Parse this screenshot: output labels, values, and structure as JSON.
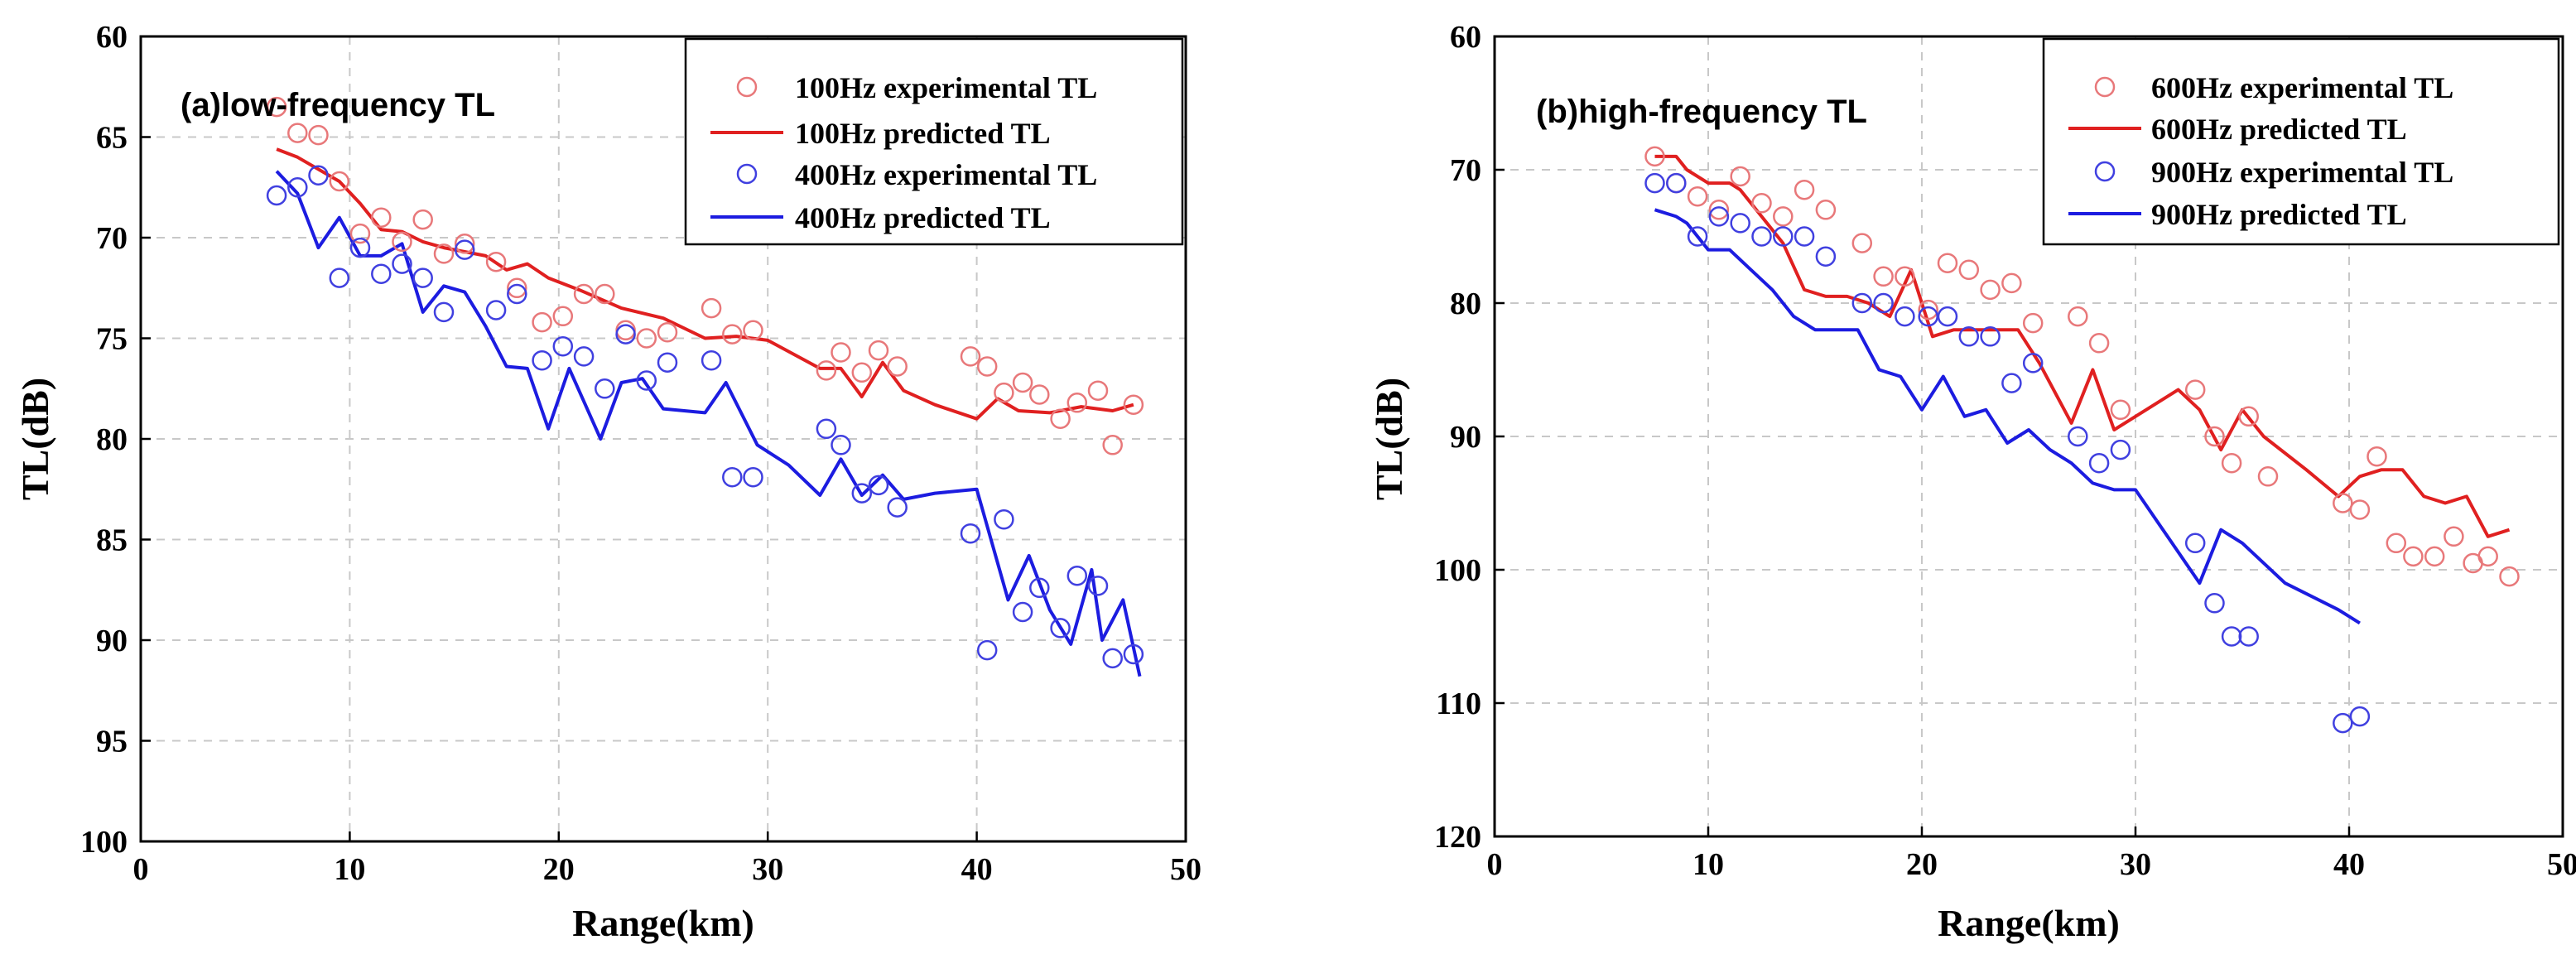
{
  "chart_data": [
    {
      "type": "line",
      "title": "(a)low-frequency TL",
      "xlabel": "Range(km)",
      "ylabel": "TL(dB)",
      "xlim": [
        0,
        50
      ],
      "ylim": [
        60,
        100
      ],
      "y_reversed": true,
      "grid": true,
      "legend_position": "top-right",
      "xticks": [
        0,
        10,
        20,
        30,
        40,
        50
      ],
      "yticks": [
        60,
        65,
        70,
        75,
        80,
        85,
        90,
        95,
        100
      ],
      "series": [
        {
          "name": "100Hz experimental TL",
          "kind": "scatter",
          "color": "#e8787a",
          "x": [
            6.5,
            7.5,
            8.5,
            9.5,
            10.5,
            11.5,
            12.5,
            13.5,
            14.5,
            15.5,
            17.0,
            18.0,
            19.2,
            20.2,
            21.2,
            22.2,
            23.2,
            24.2,
            25.2,
            27.3,
            28.3,
            29.3,
            32.8,
            33.5,
            34.5,
            35.3,
            36.2,
            39.7,
            40.5,
            41.3,
            42.2,
            43.0,
            44.0,
            44.8,
            45.8,
            46.5,
            47.5
          ],
          "y": [
            63.5,
            64.8,
            64.9,
            67.2,
            69.8,
            69.0,
            70.2,
            69.1,
            70.8,
            70.3,
            71.2,
            72.5,
            74.2,
            73.9,
            72.8,
            72.8,
            74.6,
            75.0,
            74.7,
            73.5,
            74.8,
            74.6,
            76.6,
            75.7,
            76.7,
            75.6,
            76.4,
            75.9,
            76.4,
            77.7,
            77.2,
            77.8,
            79.0,
            78.2,
            77.6,
            80.3,
            78.3
          ]
        },
        {
          "name": "100Hz predicted TL",
          "kind": "line",
          "color": "#e02020",
          "x": [
            6.5,
            7.5,
            8.5,
            9.5,
            10.5,
            11.5,
            12.5,
            13.5,
            14.5,
            15.5,
            16.5,
            17.5,
            18.5,
            19.5,
            21.0,
            23.0,
            25.0,
            27.0,
            28.5,
            30.0,
            32.5,
            33.5,
            34.5,
            35.5,
            36.5,
            38.0,
            40.0,
            41.0,
            42.0,
            43.5,
            45.0,
            46.5,
            47.5
          ],
          "y": [
            65.6,
            66.0,
            66.6,
            67.2,
            68.3,
            69.6,
            69.7,
            70.2,
            70.5,
            70.7,
            70.9,
            71.6,
            71.3,
            72.0,
            72.6,
            73.5,
            74.0,
            75.0,
            74.9,
            75.1,
            76.5,
            76.5,
            77.9,
            76.2,
            77.6,
            78.3,
            79.0,
            78.0,
            78.6,
            78.7,
            78.4,
            78.6,
            78.3
          ]
        },
        {
          "name": "400Hz experimental TL",
          "kind": "scatter",
          "color": "#4040e0",
          "x": [
            6.5,
            7.5,
            8.5,
            9.5,
            10.5,
            11.5,
            12.5,
            13.5,
            14.5,
            15.5,
            17.0,
            18.0,
            19.2,
            20.2,
            21.2,
            22.2,
            23.2,
            24.2,
            25.2,
            27.3,
            28.3,
            29.3,
            32.8,
            33.5,
            34.5,
            35.3,
            36.2,
            39.7,
            40.5,
            41.3,
            42.2,
            43.0,
            44.0,
            44.8,
            45.8,
            46.5,
            47.5
          ],
          "y": [
            67.9,
            67.5,
            66.9,
            72.0,
            70.5,
            71.8,
            71.3,
            72.0,
            73.7,
            70.6,
            73.6,
            72.8,
            76.1,
            75.4,
            75.9,
            77.5,
            74.8,
            77.1,
            76.2,
            76.1,
            81.9,
            81.9,
            79.5,
            80.3,
            82.7,
            82.3,
            83.4,
            84.7,
            90.5,
            84.0,
            88.6,
            87.4,
            89.4,
            86.8,
            87.3,
            90.9,
            90.7
          ]
        },
        {
          "name": "400Hz predicted TL",
          "kind": "line",
          "color": "#1c1ce0",
          "x": [
            6.5,
            7.5,
            8.5,
            9.5,
            10.5,
            11.5,
            12.5,
            13.5,
            14.5,
            15.5,
            16.5,
            17.5,
            18.5,
            19.5,
            20.5,
            22.0,
            23.0,
            24.0,
            25.0,
            27.0,
            28.0,
            29.5,
            31.0,
            32.5,
            33.5,
            34.5,
            35.5,
            36.5,
            38.0,
            40.0,
            41.5,
            42.5,
            43.5,
            44.5,
            45.5,
            46.0,
            47.0,
            47.8
          ],
          "y": [
            66.7,
            67.8,
            70.5,
            69.0,
            70.9,
            70.9,
            70.3,
            73.7,
            72.4,
            72.7,
            74.4,
            76.4,
            76.5,
            79.5,
            76.5,
            80.0,
            77.2,
            77.0,
            78.5,
            78.7,
            77.2,
            80.3,
            81.3,
            82.8,
            81.0,
            82.8,
            81.8,
            83.0,
            82.7,
            82.5,
            88.0,
            85.8,
            88.5,
            90.2,
            86.5,
            90.0,
            88.0,
            91.8
          ]
        }
      ]
    },
    {
      "type": "line",
      "title": "(b)high-frequency TL",
      "xlabel": "Range(km)",
      "ylabel": "TL(dB)",
      "xlim": [
        0,
        50
      ],
      "ylim": [
        60,
        120
      ],
      "y_reversed": true,
      "grid": true,
      "legend_position": "top-right",
      "xticks": [
        0,
        10,
        20,
        30,
        40,
        50
      ],
      "yticks": [
        60,
        70,
        80,
        90,
        100,
        110,
        120
      ],
      "series": [
        {
          "name": "600Hz experimental TL",
          "kind": "scatter",
          "color": "#e8787a",
          "x": [
            7.5,
            8.5,
            9.5,
            10.5,
            11.5,
            12.5,
            13.5,
            14.5,
            15.5,
            17.2,
            18.2,
            19.2,
            20.3,
            21.2,
            22.2,
            23.2,
            24.2,
            25.2,
            27.3,
            28.3,
            29.3,
            32.8,
            33.7,
            34.5,
            35.3,
            36.2,
            39.7,
            40.5,
            41.3,
            42.2,
            43.0,
            44.0,
            44.9,
            45.8,
            46.5,
            47.5
          ],
          "y": [
            69.0,
            71.0,
            72.0,
            73.0,
            70.5,
            72.5,
            73.5,
            71.5,
            73.0,
            75.5,
            78.0,
            78.0,
            80.5,
            77.0,
            77.5,
            79.0,
            78.5,
            81.5,
            81.0,
            83.0,
            88.0,
            86.5,
            90.0,
            92.0,
            88.5,
            93.0,
            95.0,
            95.5,
            91.5,
            98.0,
            99.0,
            99.0,
            97.5,
            99.5,
            99.0,
            100.5
          ]
        },
        {
          "name": "600Hz predicted TL",
          "kind": "line",
          "color": "#e02020",
          "x": [
            7.5,
            8.5,
            9.0,
            10.0,
            11.0,
            11.5,
            12.5,
            13.5,
            14.5,
            15.5,
            16.5,
            17.5,
            18.5,
            19.5,
            20.5,
            21.5,
            22.5,
            23.5,
            24.5,
            25.5,
            27.0,
            28.0,
            29.0,
            30.5,
            32.0,
            33.0,
            34.0,
            35.0,
            36.0,
            38.0,
            39.5,
            40.5,
            41.5,
            42.5,
            43.5,
            44.5,
            45.5,
            46.5,
            47.5
          ],
          "y": [
            69.0,
            69.0,
            70.0,
            71.0,
            71.0,
            71.5,
            73.5,
            75.5,
            79.0,
            79.5,
            79.5,
            80.0,
            81.0,
            77.5,
            82.5,
            82.0,
            82.0,
            82.0,
            82.0,
            84.5,
            89.0,
            85.0,
            89.5,
            88.0,
            86.5,
            88.0,
            91.0,
            88.0,
            90.0,
            92.5,
            94.5,
            93.0,
            92.5,
            92.5,
            94.5,
            95.0,
            94.5,
            97.5,
            97.0
          ]
        },
        {
          "name": "900Hz experimental TL",
          "kind": "scatter",
          "color": "#4040e0",
          "x": [
            7.5,
            8.5,
            9.5,
            10.5,
            11.5,
            12.5,
            13.5,
            14.5,
            15.5,
            17.2,
            18.2,
            19.2,
            20.3,
            21.2,
            22.2,
            23.2,
            24.2,
            25.2,
            27.3,
            28.3,
            29.3,
            32.8,
            33.7,
            34.5,
            35.3,
            39.7,
            40.5
          ],
          "y": [
            71.0,
            71.0,
            75.0,
            73.5,
            74.0,
            75.0,
            75.0,
            75.0,
            76.5,
            80.0,
            80.0,
            81.0,
            81.0,
            81.0,
            82.5,
            82.5,
            86.0,
            84.5,
            90.0,
            92.0,
            91.0,
            98.0,
            102.5,
            105.0,
            105.0,
            111.5,
            111.0
          ]
        },
        {
          "name": "900Hz predicted TL",
          "kind": "line",
          "color": "#1c1ce0",
          "x": [
            7.5,
            8.5,
            9.0,
            10.0,
            11.0,
            12.0,
            13.0,
            14.0,
            15.0,
            16.5,
            17.0,
            18.0,
            19.0,
            20.0,
            21.0,
            22.0,
            23.0,
            24.0,
            25.0,
            26.0,
            27.0,
            28.0,
            29.0,
            30.0,
            31.5,
            33.0,
            34.0,
            35.0,
            37.0,
            39.5,
            40.5
          ],
          "y": [
            73.0,
            73.5,
            74.0,
            76.0,
            76.0,
            77.5,
            79.0,
            81.0,
            82.0,
            82.0,
            82.0,
            85.0,
            85.5,
            88.0,
            85.5,
            88.5,
            88.0,
            90.5,
            89.5,
            91.0,
            92.0,
            93.5,
            94.0,
            94.0,
            97.5,
            101.0,
            97.0,
            98.0,
            101.0,
            103.0,
            104.0
          ]
        }
      ]
    }
  ]
}
